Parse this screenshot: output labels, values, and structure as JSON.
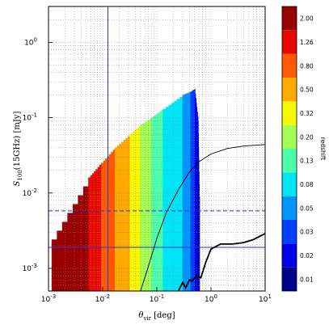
{
  "chart_data": {
    "type": "heatmap",
    "title": "",
    "xlabel": "θ_vir [deg]",
    "ylabel": "S_100(15GHz) [mJy]",
    "x_scale": "log",
    "y_scale": "log",
    "xlim": [
      0.001,
      10
    ],
    "ylim": [
      0.0005,
      3
    ],
    "grid": true,
    "x_ticks": [
      {
        "value": 0.001,
        "label": "10",
        "exp": "-3"
      },
      {
        "value": 0.01,
        "label": "10",
        "exp": "-2"
      },
      {
        "value": 0.1,
        "label": "10",
        "exp": "-1"
      },
      {
        "value": 1,
        "label": "10",
        "exp": "0"
      },
      {
        "value": 10,
        "label": "10",
        "exp": "1"
      }
    ],
    "y_ticks": [
      {
        "value": 0.001,
        "label": "10",
        "exp": "-3"
      },
      {
        "value": 0.01,
        "label": "10",
        "exp": "-2"
      },
      {
        "value": 0.1,
        "label": "10",
        "exp": "-1"
      },
      {
        "value": 1,
        "label": "10",
        "exp": "0"
      }
    ],
    "colorbar": {
      "label": "redshift",
      "levels": [
        "0.01",
        "0.02",
        "0.03",
        "0.05",
        "0.08",
        "0.13",
        "0.20",
        "0.32",
        "0.50",
        "0.80",
        "1.26",
        "2.00"
      ],
      "colors": [
        "#00008b",
        "#0000e8",
        "#0040ff",
        "#0094ff",
        "#00e4f8",
        "#4dffaa",
        "#a4ff53",
        "#f4f802",
        "#ffaa00",
        "#ff5a00",
        "#e80800",
        "#990000"
      ]
    },
    "bands": [
      {
        "redshift": "2.00",
        "x0": 0.00115,
        "x1": 0.0055,
        "y_peak_x": 0.0055,
        "y_peak": 0.016,
        "start_y": 0.0024
      },
      {
        "redshift": "1.26",
        "x0": 0.0055,
        "x1": 0.0095,
        "y_peak_x": 0.0095,
        "y_peak": 0.025
      },
      {
        "redshift": "0.80",
        "x0": 0.0095,
        "x1": 0.017,
        "y_peak_x": 0.017,
        "y_peak": 0.04
      },
      {
        "redshift": "0.50",
        "x0": 0.017,
        "x1": 0.032,
        "y_peak_x": 0.032,
        "y_peak": 0.06
      },
      {
        "redshift": "0.32",
        "x0": 0.032,
        "x1": 0.05,
        "y_peak_x": 0.05,
        "y_peak": 0.08
      },
      {
        "redshift": "0.20",
        "x0": 0.05,
        "x1": 0.08,
        "y_peak_x": 0.08,
        "y_peak": 0.1
      },
      {
        "redshift": "0.13",
        "x0": 0.08,
        "x1": 0.13,
        "y_peak_x": 0.13,
        "y_peak": 0.13
      },
      {
        "redshift": "0.08",
        "x0": 0.13,
        "x1": 0.3,
        "y_peak_x": 0.3,
        "y_peak": 0.2
      },
      {
        "redshift": "0.05",
        "x0": 0.3,
        "x1": 0.42,
        "y_peak_x": 0.42,
        "y_peak": 0.22
      },
      {
        "redshift": "0.03",
        "x0": 0.42,
        "x1": 0.5,
        "y_peak_x": 0.5,
        "y_peak": 0.24
      },
      {
        "redshift": "0.02",
        "x0": 0.5,
        "x1": 0.58,
        "y_peak_x": 0.58,
        "y_peak": 0.09
      },
      {
        "redshift": "0.01",
        "x0": 0.58,
        "x1": 0.62,
        "y_peak_x": 0.6,
        "y_peak": 0.006
      }
    ],
    "curves": [
      {
        "style": "thin",
        "points": [
          [
            0.05,
            0.0005
          ],
          [
            0.065,
            0.0009
          ],
          [
            0.1,
            0.0025
          ],
          [
            0.15,
            0.0055
          ],
          [
            0.25,
            0.011
          ],
          [
            0.4,
            0.019
          ],
          [
            0.6,
            0.026
          ],
          [
            1,
            0.033
          ],
          [
            2,
            0.039
          ],
          [
            4,
            0.042
          ],
          [
            10,
            0.044
          ]
        ]
      },
      {
        "style": "thick",
        "points": [
          [
            0.25,
            0.0005
          ],
          [
            0.3,
            0.00065
          ],
          [
            0.34,
            0.00055
          ],
          [
            0.4,
            0.0007
          ],
          [
            0.45,
            0.00068
          ],
          [
            0.55,
            0.0008
          ],
          [
            0.65,
            0.00075
          ],
          [
            0.8,
            0.0012
          ],
          [
            1,
            0.0018
          ],
          [
            1.5,
            0.0021
          ],
          [
            2.5,
            0.0021
          ],
          [
            4,
            0.0022
          ],
          [
            6,
            0.0024
          ],
          [
            10,
            0.0029
          ]
        ]
      }
    ],
    "reference_lines": [
      {
        "orientation": "vertical",
        "value": 0.0125,
        "style": "solid",
        "color": "#3333cc"
      },
      {
        "orientation": "horizontal",
        "value": 0.0019,
        "style": "solid",
        "color": "#3333cc"
      },
      {
        "orientation": "horizontal",
        "value": 0.0058,
        "style": "dashed",
        "color": "#3333cc"
      }
    ]
  }
}
